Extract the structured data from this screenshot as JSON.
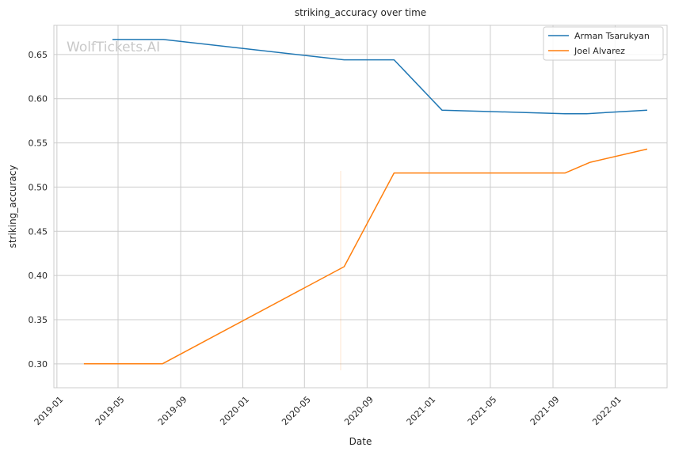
{
  "chart_data": {
    "type": "line",
    "title": "striking_accuracy over time",
    "xlabel": "Date",
    "ylabel": "striking_accuracy",
    "x_tick_labels": [
      "2019-01",
      "2019-05",
      "2019-09",
      "2020-01",
      "2020-05",
      "2020-09",
      "2021-01",
      "2021-05",
      "2021-09",
      "2022-01"
    ],
    "y_ticks": [
      0.3,
      0.35,
      0.4,
      0.45,
      0.5,
      0.55,
      0.6,
      0.65
    ],
    "y_tick_labels": [
      "0.30",
      "0.35",
      "0.40",
      "0.45",
      "0.50",
      "0.55",
      "0.60",
      "0.65"
    ],
    "ylim": [
      0.273,
      0.683
    ],
    "xlim": [
      "2018-12-26",
      "2022-04-13"
    ],
    "grid": true,
    "legend_position": "top-right",
    "watermark": "WolfTickets.AI",
    "series": [
      {
        "name": "Arman Tsarukyan",
        "color": "#1f77b4",
        "points": [
          [
            "2019-04-20",
            0.667
          ],
          [
            "2019-07-29",
            0.667
          ],
          [
            "2020-07-18",
            0.644
          ],
          [
            "2020-10-24",
            0.644
          ],
          [
            "2021-01-26",
            0.587
          ],
          [
            "2021-09-25",
            0.583
          ],
          [
            "2021-11-06",
            0.583
          ],
          [
            "2022-03-05",
            0.587
          ]
        ]
      },
      {
        "name": "Joel Alvarez",
        "color": "#ff7f0e",
        "points": [
          [
            "2019-02-23",
            0.3
          ],
          [
            "2019-07-27",
            0.3
          ],
          [
            "2020-07-18",
            0.41
          ],
          [
            "2020-10-24",
            0.516
          ],
          [
            "2021-09-25",
            0.516
          ],
          [
            "2021-11-13",
            0.528
          ],
          [
            "2022-03-05",
            0.543
          ]
        ]
      }
    ]
  }
}
